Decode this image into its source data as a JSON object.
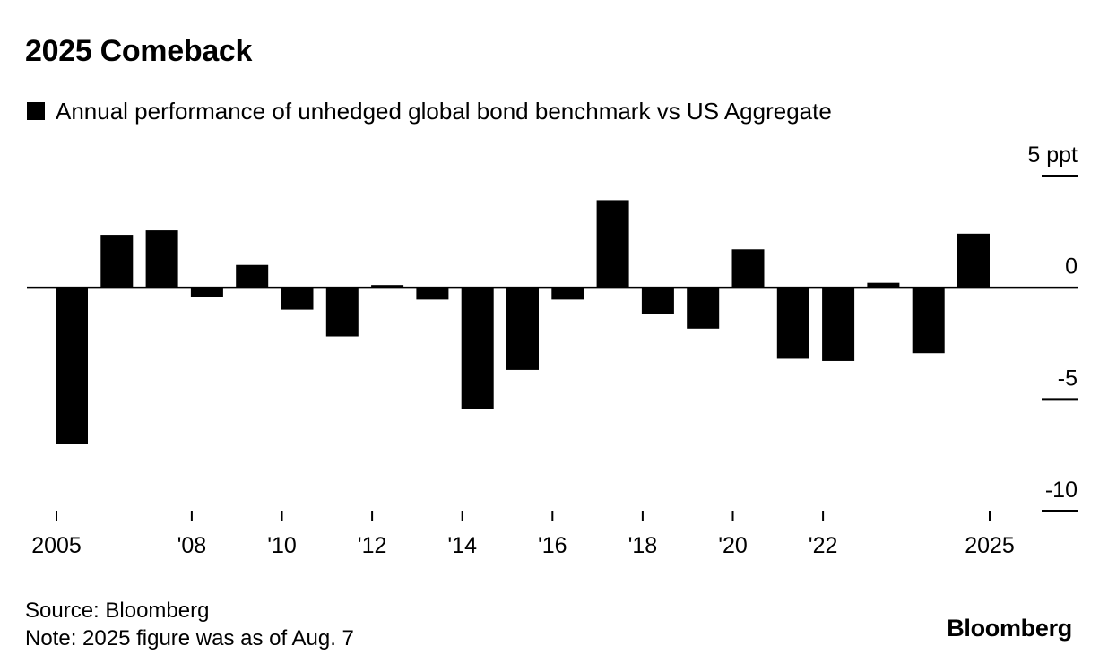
{
  "chart_data": {
    "type": "bar",
    "title": "2025 Comeback",
    "legend": [
      "Annual performance of unhedged global bond benchmark vs US Aggregate"
    ],
    "series": [
      {
        "name": "Annual performance of unhedged global bond benchmark vs US Aggregate",
        "color": "#000000",
        "categories": [
          "2005",
          "2006",
          "2007",
          "2008",
          "2009",
          "2010",
          "2011",
          "2012",
          "2013",
          "2014",
          "2015",
          "2016",
          "2017",
          "2018",
          "2019",
          "2020",
          "2021",
          "2022",
          "2023",
          "2024",
          "2025"
        ],
        "values": [
          -7.0,
          2.35,
          2.55,
          -0.45,
          1.0,
          -1.0,
          -2.2,
          0.1,
          -0.55,
          -5.45,
          -3.7,
          -0.55,
          3.9,
          -1.2,
          -1.85,
          1.7,
          -3.2,
          -3.3,
          0.2,
          -2.95,
          2.4
        ]
      }
    ],
    "ylim": [
      -10,
      5
    ],
    "y_ticks": [
      {
        "value": 5,
        "label": "5 ppt"
      },
      {
        "value": 0,
        "label": "0"
      },
      {
        "value": -5,
        "label": "-5"
      },
      {
        "value": -10,
        "label": "-10"
      }
    ],
    "x_ticks": [
      {
        "category": "2005",
        "label": "2005"
      },
      {
        "category": "2008",
        "label": "'08"
      },
      {
        "category": "2010",
        "label": "'10"
      },
      {
        "category": "2012",
        "label": "'12"
      },
      {
        "category": "2014",
        "label": "'14"
      },
      {
        "category": "2016",
        "label": "'16"
      },
      {
        "category": "2018",
        "label": "'18"
      },
      {
        "category": "2020",
        "label": "'20"
      },
      {
        "category": "2022",
        "label": "'22"
      },
      {
        "category": "2025",
        "label": "2025"
      }
    ],
    "xlabel": "",
    "ylabel": "",
    "grid": false,
    "legend_position": "top-left"
  },
  "footer": {
    "source": "Source: Bloomberg",
    "note": "Note: 2025 figure was as of Aug. 7",
    "brand": "Bloomberg"
  }
}
